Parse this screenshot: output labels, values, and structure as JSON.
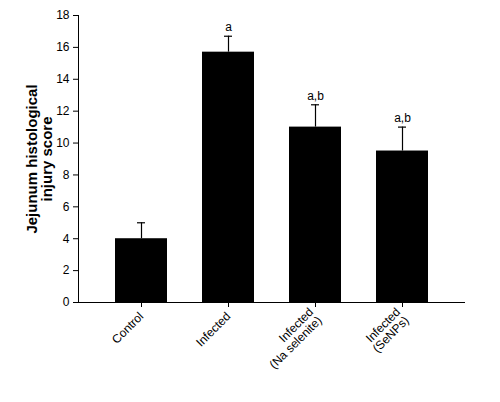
{
  "chart_data": {
    "type": "bar",
    "y_label": "Jejunum histological\ninjury score",
    "categories": [
      "Control",
      "Infected",
      "Infected\n(Na selenite)",
      "Infected\n(SeNPs)"
    ],
    "values": [
      4.0,
      15.7,
      11.0,
      9.5
    ],
    "errors": [
      1.0,
      1.0,
      1.4,
      1.5
    ],
    "annotations": [
      null,
      "a",
      "a,b",
      "a,b"
    ],
    "color": "#000000",
    "ylim": [
      0,
      18
    ],
    "yticks": [
      0,
      2,
      4,
      6,
      8,
      10,
      12,
      14,
      16,
      18
    ],
    "grid": false
  }
}
